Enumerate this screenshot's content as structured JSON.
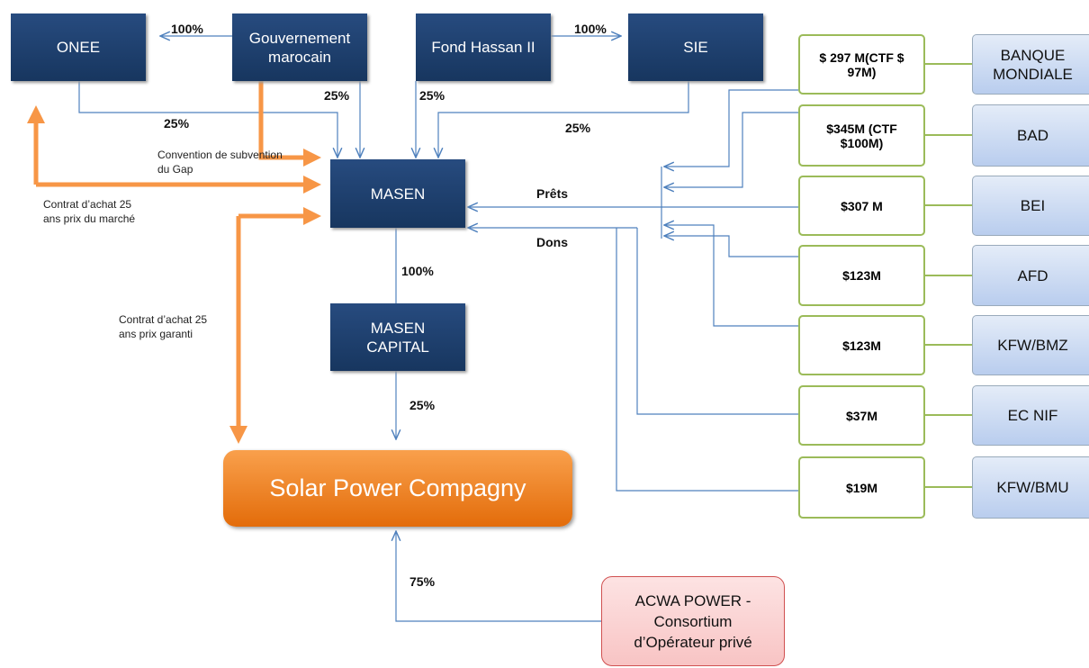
{
  "nodes": {
    "onee": "ONEE",
    "gouvernement": "Gouvernement marocain",
    "fond": "Fond Hassan II",
    "sie": "SIE",
    "masen": "MASEN",
    "masen_capital": "MASEN CAPITAL",
    "solar": "Solar Power Compagny",
    "acwa": "ACWA POWER - Consortium d’Opérateur privé"
  },
  "lenders": [
    {
      "amount": "$ 297 M(CTF $ 97M)",
      "name": "BANQUE MONDIALE"
    },
    {
      "amount": "$345M (CTF $100M)",
      "name": "BAD"
    },
    {
      "amount": "$307 M",
      "name": "BEI"
    },
    {
      "amount": "$123M",
      "name": "AFD"
    },
    {
      "amount": "$123M",
      "name": "KFW/BMZ"
    },
    {
      "amount": "$37M",
      "name": "EC NIF"
    },
    {
      "amount": "$19M",
      "name": "KFW/BMU"
    }
  ],
  "edge_labels": {
    "gov_onee": "100%",
    "fond_sie": "100%",
    "gov_masen": "25%",
    "fond_masen": "25%",
    "onee_masen": "25%",
    "sie_masen": "25%",
    "prets": "Prêts",
    "dons": "Dons",
    "masen_capital": "100%",
    "capital_solar": "25%",
    "acwa_solar": "75%"
  },
  "notes": {
    "convention": "Convention de subvention du Gap",
    "contrat_marche": "Contrat d’achat 25 ans prix du marché",
    "contrat_garanti": "Contrat d’achat 25 ans prix garanti"
  }
}
